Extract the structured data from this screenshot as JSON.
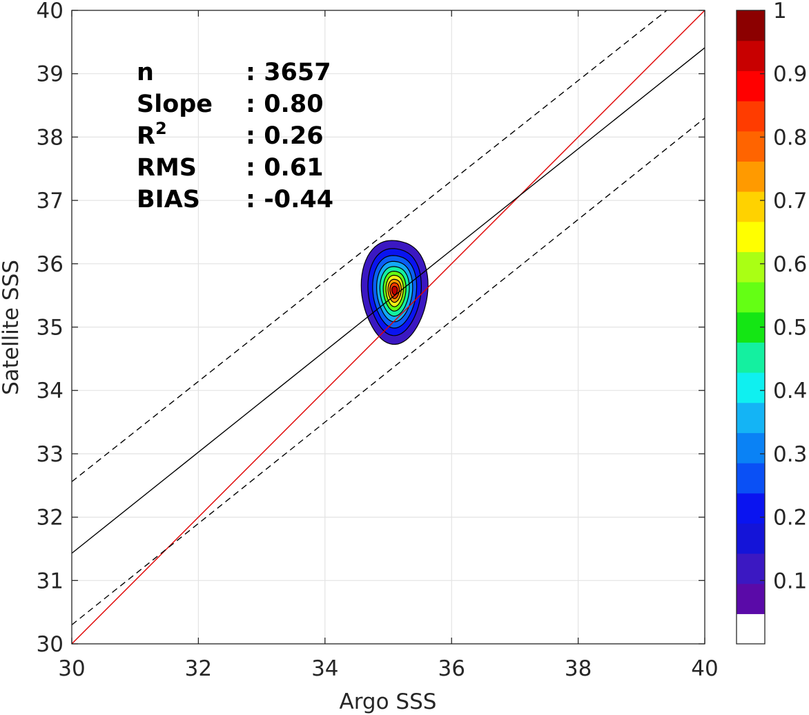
{
  "chart_data": {
    "type": "heatmap",
    "subtype": "density contour scatter comparison",
    "xlabel": "Argo SSS",
    "ylabel": "Satellite SSS",
    "xlim": [
      30,
      40
    ],
    "ylim": [
      30,
      40
    ],
    "xticks": [
      "30",
      "32",
      "34",
      "36",
      "38",
      "40"
    ],
    "yticks": [
      "30",
      "31",
      "32",
      "33",
      "34",
      "35",
      "36",
      "37",
      "38",
      "39",
      "40"
    ],
    "grid": true,
    "stats": [
      {
        "label": "n",
        "sep": ": ",
        "value": "3657"
      },
      {
        "label": "Slope",
        "sep": ": ",
        "value": "0.80"
      },
      {
        "label": "R",
        "sup": "2",
        "sep": ": ",
        "value": "0.26"
      },
      {
        "label": "RMS",
        "sep": ": ",
        "value": "0.61"
      },
      {
        "label": "BIAS",
        "sep": ": ",
        "value": "-0.44"
      }
    ],
    "lines": [
      {
        "kind": "one-to-one",
        "color": "#e00000",
        "style": "solid",
        "x": [
          30,
          40
        ],
        "y": [
          30,
          40
        ]
      },
      {
        "kind": "regression",
        "color": "#000000",
        "style": "solid",
        "x": [
          30,
          40
        ],
        "y": [
          31.43,
          39.41
        ]
      },
      {
        "kind": "regression-upper",
        "color": "#000000",
        "style": "dashed",
        "x": [
          30,
          39.4
        ],
        "y": [
          32.56,
          40
        ]
      },
      {
        "kind": "regression-lower",
        "color": "#000000",
        "style": "dashed",
        "x": [
          30,
          40
        ],
        "y": [
          30.3,
          38.3
        ]
      }
    ],
    "density": {
      "center": [
        35.1,
        35.58
      ],
      "levels": [
        {
          "level": 0.05,
          "rx": 0.5,
          "ry": 0.86,
          "color": "#3b18c2"
        },
        {
          "level": 0.15,
          "rx": 0.4,
          "ry": 0.72,
          "color": "#0a14f0"
        },
        {
          "level": 0.25,
          "rx": 0.33,
          "ry": 0.6,
          "color": "#0a5ff5"
        },
        {
          "level": 0.35,
          "rx": 0.27,
          "ry": 0.5,
          "color": "#14aaf5"
        },
        {
          "level": 0.45,
          "rx": 0.22,
          "ry": 0.41,
          "color": "#14f0a0"
        },
        {
          "level": 0.55,
          "rx": 0.17,
          "ry": 0.33,
          "color": "#64ff14"
        },
        {
          "level": 0.65,
          "rx": 0.13,
          "ry": 0.26,
          "color": "#f0f014"
        },
        {
          "level": 0.75,
          "rx": 0.1,
          "ry": 0.19,
          "color": "#ff9a00"
        },
        {
          "level": 0.85,
          "rx": 0.07,
          "ry": 0.13,
          "color": "#ff3c00"
        },
        {
          "level": 0.95,
          "rx": 0.04,
          "ry": 0.07,
          "color": "#c00000"
        }
      ]
    },
    "colorbar": {
      "min": 0,
      "max": 1,
      "ticks": [
        "0.1",
        "0.2",
        "0.3",
        "0.4",
        "0.5",
        "0.6",
        "0.7",
        "0.8",
        "0.9",
        "1"
      ],
      "colors": [
        "#ffffff",
        "#5a0aa8",
        "#3b18c2",
        "#1414d8",
        "#0a14f0",
        "#0a50f5",
        "#0a82f5",
        "#14b4f5",
        "#0ff0f0",
        "#14f0a0",
        "#14e614",
        "#64ff14",
        "#aaff14",
        "#ffff00",
        "#ffd200",
        "#ff9a00",
        "#ff6400",
        "#ff3c00",
        "#ff0000",
        "#c80000",
        "#8c0000"
      ]
    }
  }
}
